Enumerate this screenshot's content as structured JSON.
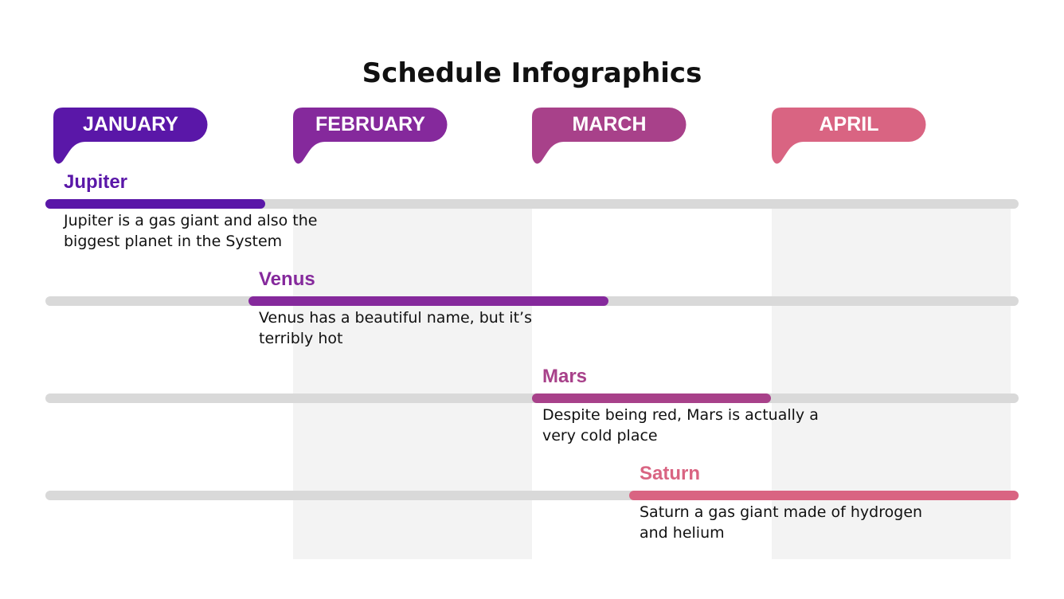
{
  "title": "Schedule Infographics",
  "months": [
    {
      "label": "JANUARY",
      "color": "#5a17a8"
    },
    {
      "label": "FEBRUARY",
      "color": "#85299c"
    },
    {
      "label": "MARCH",
      "color": "#a8418a"
    },
    {
      "label": "APRIL",
      "color": "#d96482"
    }
  ],
  "tasks": [
    {
      "name": "Jupiter",
      "description": "Jupiter is a gas giant and also the biggest planet in the System",
      "color": "#5a17a8"
    },
    {
      "name": "Venus",
      "description": "Venus has a beautiful name, but it’s terribly hot",
      "color": "#85299c"
    },
    {
      "name": "Mars",
      "description": "Despite being red, Mars is actually a very cold place",
      "color": "#a8418a"
    },
    {
      "name": "Saturn",
      "description": "Saturn a gas giant made of hydrogen and helium",
      "color": "#d96482"
    }
  ]
}
